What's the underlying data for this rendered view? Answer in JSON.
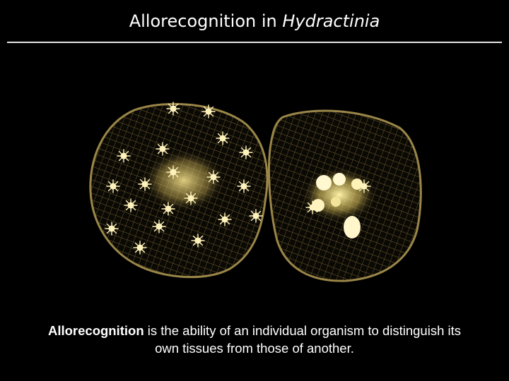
{
  "slide": {
    "title_prefix": "Allorecognition in ",
    "title_italic": "Hydractinia",
    "caption_bold": "Allorecognition",
    "caption_rest": " is the ability of an individual organism to distinguish its own tissues from those of another."
  },
  "colors": {
    "background": "#000000",
    "text": "#ffffff",
    "rule": "#e6e6e6",
    "colony_mesh": "#7a6a3a",
    "colony_rim": "#8f7d45",
    "polyp": "#fff6c8",
    "core_glow": "#e8d27a"
  },
  "image": {
    "icon": "hydractinia-colonies-photo"
  }
}
